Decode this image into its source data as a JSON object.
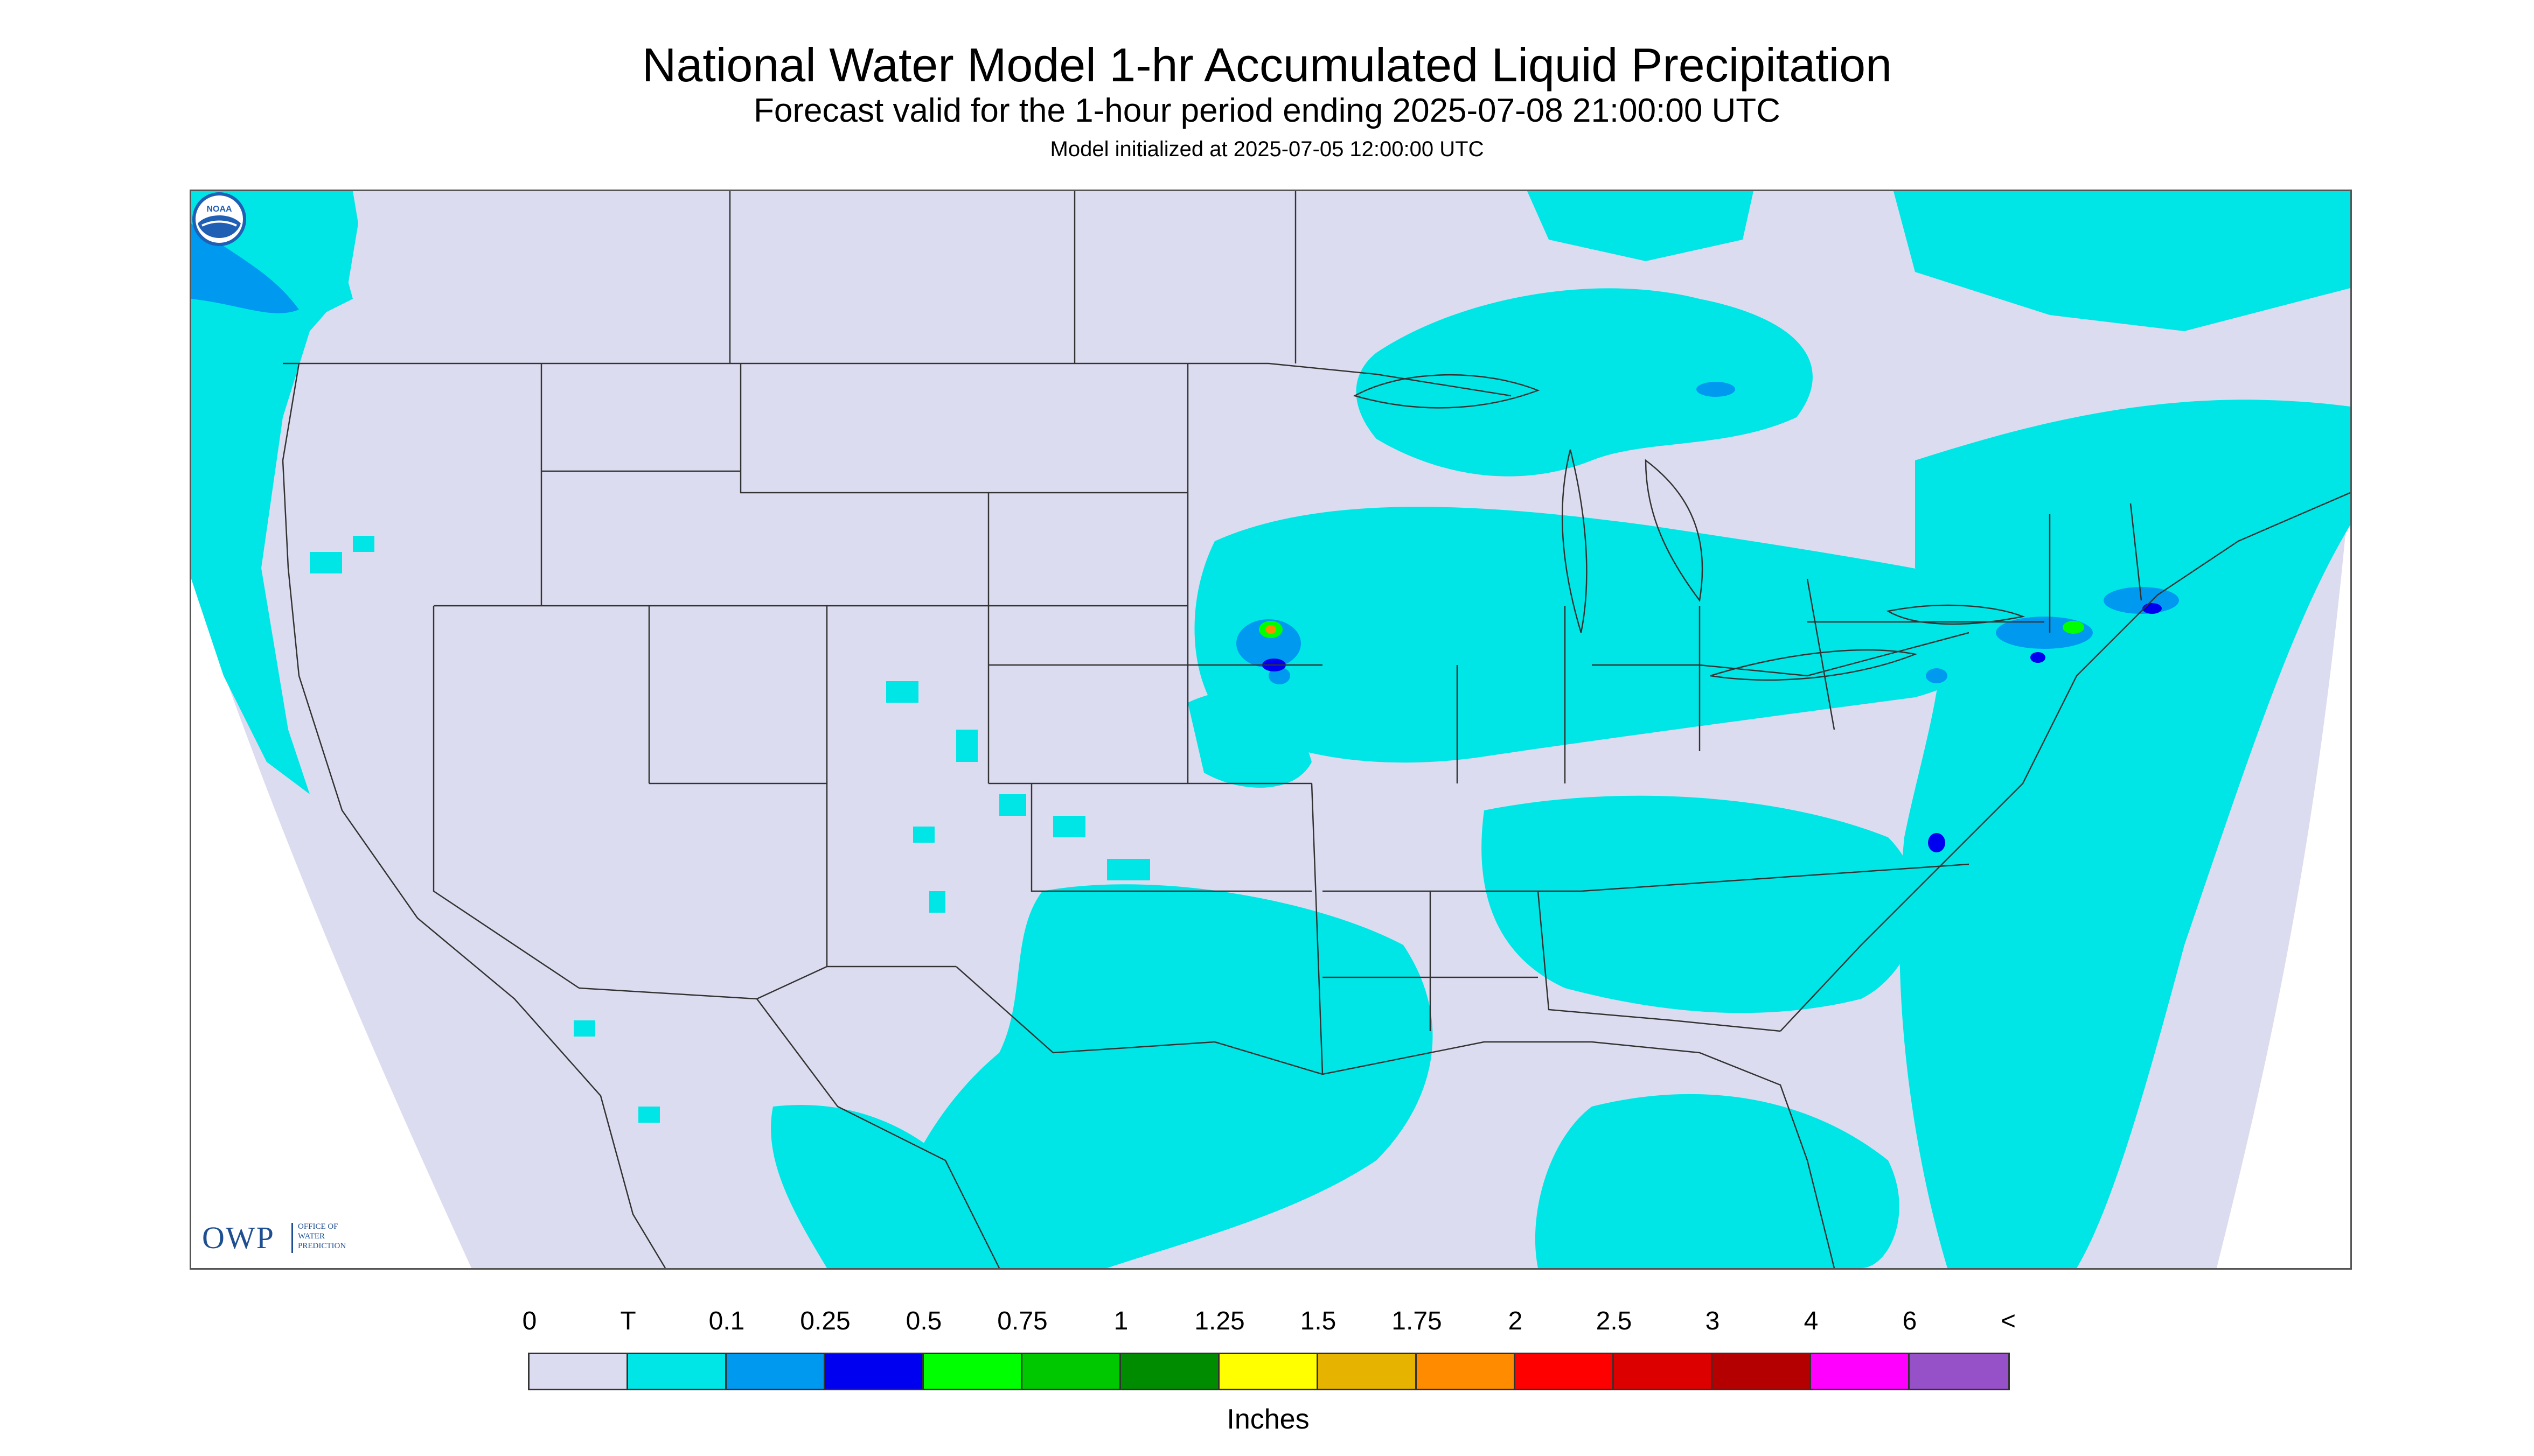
{
  "title": "National Water Model 1-hr Accumulated Liquid Precipitation",
  "subtitle": "Forecast valid for the 1-hour period ending 2025-07-08 21:00:00 UTC",
  "init_line": "Model initialized at 2025-07-05 12:00:00 UTC",
  "logos": {
    "owp_text": "OWP",
    "owp_sub": [
      "OFFICE OF",
      "WATER",
      "PREDICTION"
    ],
    "noaa_text": "NOAA"
  },
  "legend": {
    "units": "Inches",
    "tick_labels": [
      "0",
      "T",
      "0.1",
      "0.25",
      "0.5",
      "0.75",
      "1",
      "1.25",
      "1.5",
      "1.75",
      "2",
      "2.5",
      "3",
      "4",
      "6",
      "<"
    ],
    "colors": [
      "#dcdcf0",
      "#00e6e6",
      "#0099f0",
      "#0000f0",
      "#00ff00",
      "#00c800",
      "#008c00",
      "#ffff00",
      "#e6b400",
      "#ff8c00",
      "#ff0000",
      "#dc0000",
      "#b40000",
      "#ff00ff",
      "#9650c8"
    ]
  },
  "map": {
    "background_color": "#dcdcf0",
    "precip_colors": {
      "trace": "#00e6e6",
      "light": "#0099f0",
      "moderate": "#0000f0",
      "heavy": "#00ff00",
      "very_heavy": "#ff8c00"
    },
    "boundary_color": "#333333"
  }
}
